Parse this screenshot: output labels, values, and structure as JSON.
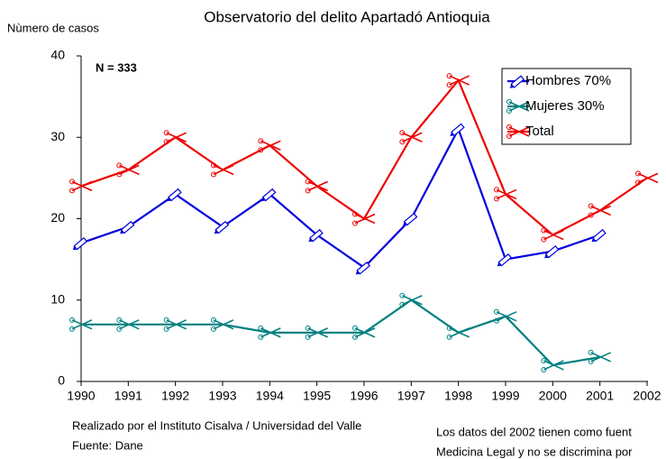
{
  "chart_data": {
    "type": "line",
    "title": "Observatorio del delito Apartadó Antioquia",
    "y_label": "Nùmero de casos",
    "annotation": "N = 333",
    "footer_left": [
      "Realizado por el Instituto Cisalva / Universidad del Valle",
      "Fuente: Dane"
    ],
    "footer_right": [
      "Los datos del 2002 tienen como fuent",
      "Medicina Legal y no se discrimina por"
    ],
    "categories": [
      "1990",
      "1991",
      "1992",
      "1993",
      "1994",
      "1995",
      "1996",
      "1997",
      "1998",
      "1999",
      "2000",
      "2001",
      "2002"
    ],
    "series": [
      {
        "name": "Hombres 70%",
        "color": "#0000dd",
        "marker": "pencil",
        "values": [
          17,
          19,
          23,
          19,
          23,
          18,
          14,
          20,
          31,
          15,
          16,
          18,
          null
        ]
      },
      {
        "name": "Mujeres 30%",
        "color": "#008080",
        "marker": "scissors",
        "values": [
          7,
          7,
          7,
          7,
          6,
          6,
          6,
          10,
          6,
          8,
          2,
          3,
          null
        ]
      },
      {
        "name": "Total",
        "color": "#ee0000",
        "marker": "scissors",
        "values": [
          24,
          26,
          30,
          26,
          29,
          24,
          20,
          30,
          37,
          23,
          18,
          21,
          25
        ]
      }
    ],
    "ylim": [
      0,
      40
    ],
    "yticks": [
      0,
      10,
      20,
      30,
      40
    ],
    "grid": false,
    "legend": "upper right"
  }
}
